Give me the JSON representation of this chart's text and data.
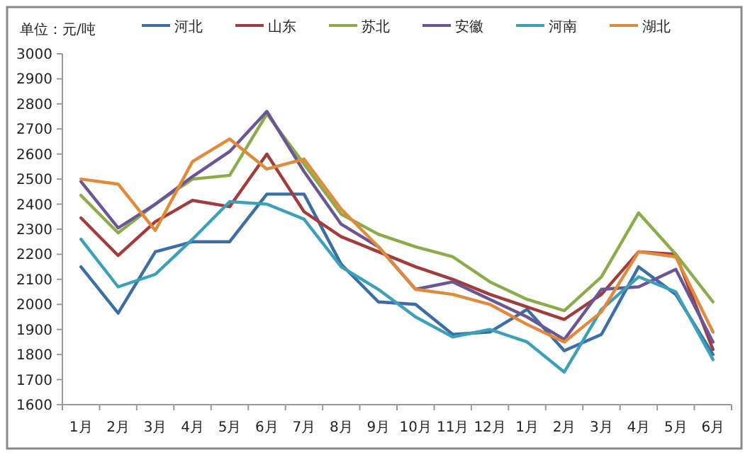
{
  "chart_data": {
    "type": "line",
    "ylabel": "单位：元/吨",
    "legend": "top",
    "grid": false,
    "marker": "none",
    "line_style": "solid",
    "categories": [
      "1月",
      "2月",
      "3月",
      "4月",
      "5月",
      "6月",
      "7月",
      "8月",
      "9月",
      "10月",
      "11月",
      "12月",
      "1月",
      "2月",
      "3月",
      "4月",
      "5月",
      "6月"
    ],
    "ylim": [
      1600,
      3000
    ],
    "yticks": [
      1600,
      1700,
      1800,
      1900,
      2000,
      2100,
      2200,
      2300,
      2400,
      2500,
      2600,
      2700,
      2800,
      2900,
      3000
    ],
    "series": [
      {
        "name": "河北",
        "color": "#3a6ea5",
        "values": [
          2150,
          1965,
          2210,
          2250,
          2250,
          2440,
          2440,
          2160,
          2010,
          2000,
          1880,
          1890,
          1980,
          1815,
          1880,
          2150,
          2040,
          1800
        ]
      },
      {
        "name": "山东",
        "color": "#a23b3b",
        "values": [
          2345,
          2195,
          2330,
          2415,
          2390,
          2600,
          2370,
          2270,
          2210,
          2150,
          2100,
          2040,
          1990,
          1940,
          2040,
          2210,
          2200,
          1820
        ]
      },
      {
        "name": "苏北",
        "color": "#8cac4b",
        "values": [
          2435,
          2285,
          2400,
          2500,
          2515,
          2760,
          2560,
          2360,
          2280,
          2230,
          2190,
          2090,
          2020,
          1975,
          2110,
          2365,
          2200,
          2010
        ]
      },
      {
        "name": "安徽",
        "color": "#6b5595",
        "values": [
          2490,
          2305,
          2400,
          2510,
          2610,
          2770,
          2530,
          2320,
          2230,
          2060,
          2090,
          2020,
          1950,
          1860,
          2060,
          2070,
          2140,
          1850
        ]
      },
      {
        "name": "河南",
        "color": "#3ca0b8",
        "values": [
          2260,
          2070,
          2120,
          2260,
          2410,
          2400,
          2340,
          2150,
          2060,
          1950,
          1870,
          1900,
          1850,
          1730,
          1980,
          2110,
          2050,
          1780
        ]
      },
      {
        "name": "湖北",
        "color": "#e08a3a",
        "values": [
          2500,
          2480,
          2295,
          2570,
          2660,
          2540,
          2580,
          2380,
          2230,
          2060,
          2040,
          2000,
          1920,
          1850,
          1970,
          2210,
          2190,
          1890
        ]
      }
    ]
  }
}
